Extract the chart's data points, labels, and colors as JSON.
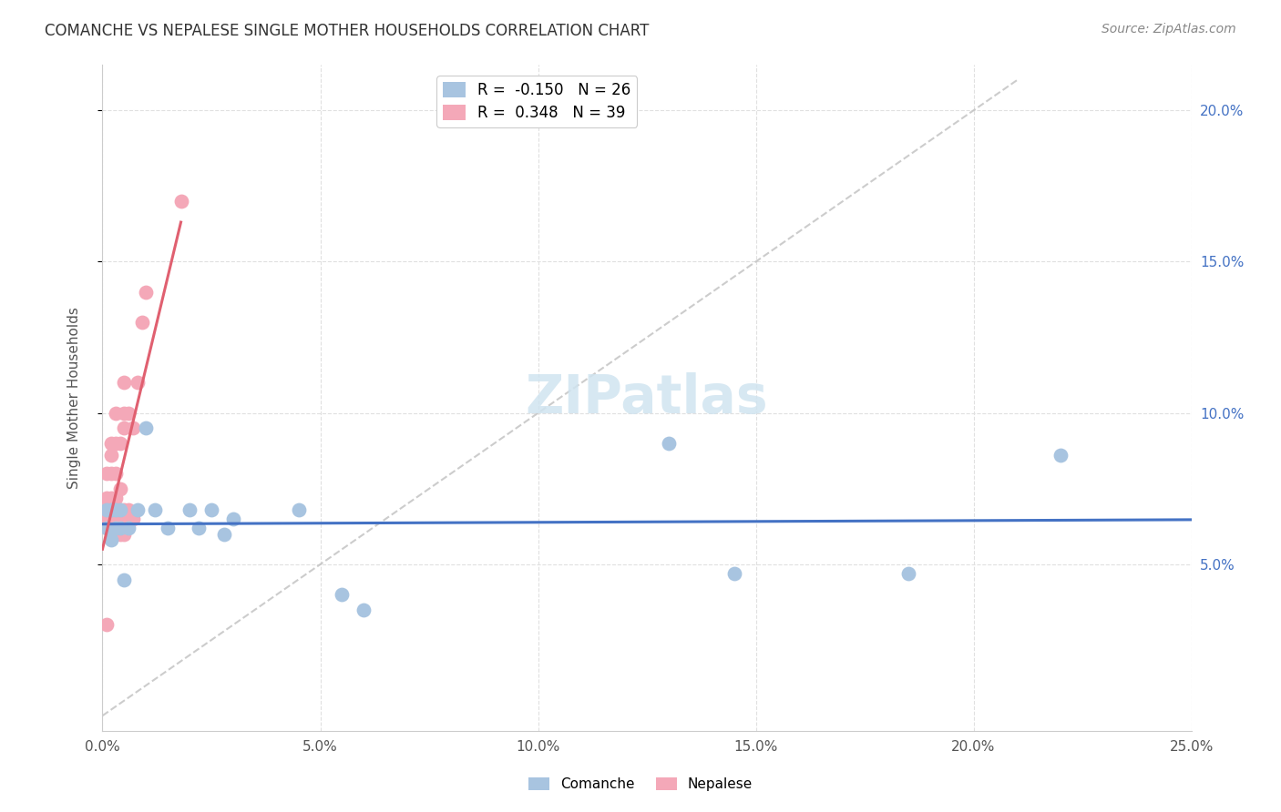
{
  "title": "COMANCHE VS NEPALESE SINGLE MOTHER HOUSEHOLDS CORRELATION CHART",
  "source": "Source: ZipAtlas.com",
  "ylabel": "Single Mother Households",
  "xlim": [
    0.0,
    0.25
  ],
  "ylim": [
    -0.005,
    0.215
  ],
  "xticks": [
    0.0,
    0.05,
    0.1,
    0.15,
    0.2,
    0.25
  ],
  "yticks": [
    0.05,
    0.1,
    0.15,
    0.2
  ],
  "xticklabels": [
    "0.0%",
    "5.0%",
    "10.0%",
    "15.0%",
    "20.0%",
    "25.0%"
  ],
  "yticklabels_right": [
    "5.0%",
    "10.0%",
    "15.0%",
    "20.0%"
  ],
  "comanche_R": -0.15,
  "comanche_N": 26,
  "nepalese_R": 0.348,
  "nepalese_N": 39,
  "comanche_color": "#a8c4e0",
  "nepalese_color": "#f4a8b8",
  "comanche_line_color": "#4472c4",
  "nepalese_line_color": "#e06070",
  "diagonal_color": "#c0c0c0",
  "comanche_x": [
    0.001,
    0.001,
    0.002,
    0.002,
    0.003,
    0.003,
    0.004,
    0.004,
    0.005,
    0.006,
    0.008,
    0.01,
    0.012,
    0.015,
    0.02,
    0.022,
    0.025,
    0.028,
    0.03,
    0.045,
    0.055,
    0.06,
    0.13,
    0.145,
    0.185,
    0.22
  ],
  "comanche_y": [
    0.068,
    0.062,
    0.068,
    0.058,
    0.068,
    0.062,
    0.068,
    0.062,
    0.045,
    0.062,
    0.068,
    0.095,
    0.068,
    0.062,
    0.068,
    0.062,
    0.068,
    0.06,
    0.065,
    0.068,
    0.04,
    0.035,
    0.09,
    0.047,
    0.047,
    0.086
  ],
  "nepalese_x": [
    0.001,
    0.001,
    0.001,
    0.001,
    0.001,
    0.002,
    0.002,
    0.002,
    0.002,
    0.002,
    0.002,
    0.003,
    0.003,
    0.003,
    0.003,
    0.003,
    0.003,
    0.003,
    0.004,
    0.004,
    0.004,
    0.004,
    0.004,
    0.005,
    0.005,
    0.005,
    0.005,
    0.005,
    0.005,
    0.005,
    0.006,
    0.006,
    0.006,
    0.007,
    0.007,
    0.008,
    0.009,
    0.01,
    0.018
  ],
  "nepalese_y": [
    0.065,
    0.068,
    0.072,
    0.08,
    0.03,
    0.062,
    0.068,
    0.072,
    0.08,
    0.086,
    0.09,
    0.06,
    0.062,
    0.068,
    0.072,
    0.08,
    0.09,
    0.1,
    0.06,
    0.065,
    0.068,
    0.075,
    0.09,
    0.06,
    0.062,
    0.065,
    0.068,
    0.095,
    0.1,
    0.11,
    0.065,
    0.068,
    0.1,
    0.065,
    0.095,
    0.11,
    0.13,
    0.14,
    0.17
  ],
  "background_color": "#ffffff",
  "grid_color": "#e0e0e0"
}
